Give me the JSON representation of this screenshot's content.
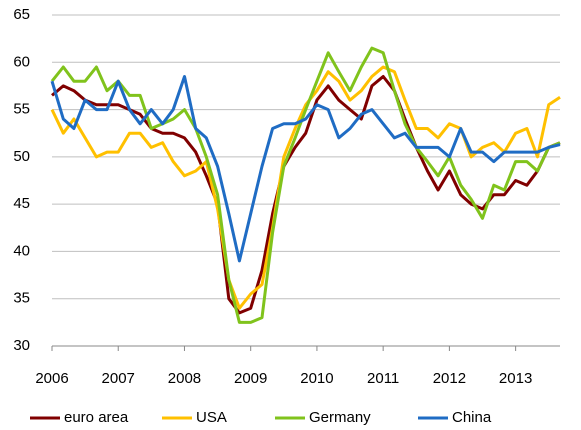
{
  "chart_data": {
    "type": "line",
    "x": [
      2006,
      2006.17,
      2006.33,
      2006.5,
      2006.67,
      2006.83,
      2007,
      2007.17,
      2007.33,
      2007.5,
      2007.67,
      2007.83,
      2008,
      2008.17,
      2008.33,
      2008.5,
      2008.67,
      2008.83,
      2009,
      2009.17,
      2009.33,
      2009.5,
      2009.67,
      2009.83,
      2010,
      2010.17,
      2010.33,
      2010.5,
      2010.67,
      2010.83,
      2011,
      2011.17,
      2011.33,
      2011.5,
      2011.67,
      2011.83,
      2012,
      2012.17,
      2012.33,
      2012.5,
      2012.67,
      2012.83,
      2013,
      2013.17,
      2013.33,
      2013.5,
      2013.67
    ],
    "series": [
      {
        "name": "euro area",
        "color": "#800000",
        "values": [
          56.5,
          57.5,
          57,
          56,
          55.5,
          55.5,
          55.5,
          55,
          54.5,
          53,
          52.5,
          52.5,
          52,
          50.5,
          48,
          45,
          35,
          33.5,
          34,
          38,
          44,
          49,
          51,
          52.5,
          56,
          57.5,
          56,
          55,
          54,
          57.5,
          58.5,
          57,
          54,
          51,
          48.5,
          46.5,
          48.5,
          46,
          45,
          44.5,
          46,
          46,
          47.5,
          47,
          48.5,
          51,
          51.5
        ]
      },
      {
        "name": "USA",
        "color": "#ffc000",
        "values": [
          55,
          52.5,
          54,
          52,
          50,
          50.5,
          50.5,
          52.5,
          52.5,
          51,
          51.5,
          49.5,
          48,
          48.5,
          49.5,
          44.5,
          37,
          34,
          35.5,
          36.5,
          42.5,
          50,
          53,
          55.5,
          57,
          59,
          58,
          56,
          57,
          58.5,
          59.5,
          59,
          56,
          53,
          53,
          52,
          53.5,
          53,
          50,
          51,
          51.5,
          50.5,
          52.5,
          53,
          50,
          55.5,
          56.3
        ]
      },
      {
        "name": "Germany",
        "color": "#80c31c",
        "values": [
          58,
          59.5,
          58,
          58,
          59.5,
          57,
          58,
          56.5,
          56.5,
          53,
          53.5,
          54,
          55,
          53,
          50,
          46,
          37,
          32.5,
          32.5,
          33,
          42,
          49,
          52,
          55,
          58,
          61,
          59,
          57,
          59.5,
          61.5,
          61,
          57,
          53.5,
          51,
          49.5,
          48,
          50,
          47,
          45.5,
          43.5,
          47,
          46.5,
          49.5,
          49.5,
          48.5,
          51,
          51.5
        ]
      },
      {
        "name": "China",
        "color": "#1f6cc4",
        "values": [
          58,
          54,
          53,
          56,
          55,
          55,
          58,
          55,
          53.5,
          55,
          53.5,
          55,
          58.5,
          53,
          52,
          49,
          44,
          39,
          44,
          49,
          53,
          53.5,
          53.5,
          54,
          55.5,
          55,
          52,
          53,
          54.5,
          55,
          53.5,
          52,
          52.5,
          51,
          51,
          51,
          50,
          53,
          50.5,
          50.5,
          49.5,
          50.5,
          50.5,
          50.5,
          50.5,
          51,
          51.3
        ]
      }
    ],
    "xlim": [
      2006,
      2013.67
    ],
    "ylim": [
      30,
      65
    ],
    "xticks": [
      2006,
      2007,
      2008,
      2009,
      2010,
      2011,
      2012,
      2013
    ],
    "yticks": [
      30,
      35,
      40,
      45,
      50,
      55,
      60,
      65
    ],
    "grid": true
  }
}
